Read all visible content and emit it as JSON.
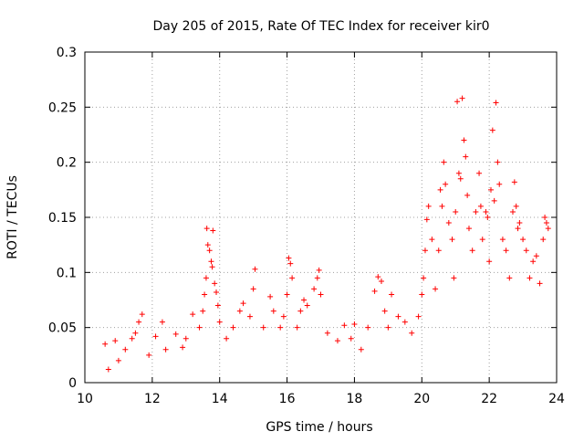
{
  "chart_data": {
    "type": "scatter",
    "title": "Day 205 of 2015, Rate Of TEC Index for receiver kir0",
    "xlabel": "GPS time / hours",
    "ylabel": "ROTI / TECUs",
    "xlim": [
      10,
      24
    ],
    "ylim": [
      0,
      0.3
    ],
    "xticks": [
      "10",
      "12",
      "14",
      "16",
      "18",
      "20",
      "22",
      "24"
    ],
    "yticks": [
      "0",
      "0.05",
      "0.1",
      "0.15",
      "0.2",
      "0.25",
      "0.3"
    ],
    "grid": true,
    "marker": "+",
    "color": "#ff0000",
    "series": [
      {
        "points": [
          [
            10.6,
            0.035
          ],
          [
            10.7,
            0.012
          ],
          [
            10.9,
            0.038
          ],
          [
            11.0,
            0.02
          ],
          [
            11.2,
            0.03
          ],
          [
            11.4,
            0.04
          ],
          [
            11.5,
            0.045
          ],
          [
            11.6,
            0.055
          ],
          [
            11.7,
            0.062
          ],
          [
            11.9,
            0.025
          ],
          [
            12.1,
            0.042
          ],
          [
            12.3,
            0.055
          ],
          [
            12.4,
            0.03
          ],
          [
            12.7,
            0.044
          ],
          [
            12.9,
            0.032
          ],
          [
            13.0,
            0.04
          ],
          [
            13.2,
            0.062
          ],
          [
            13.4,
            0.05
          ],
          [
            13.5,
            0.065
          ],
          [
            13.55,
            0.08
          ],
          [
            13.6,
            0.095
          ],
          [
            13.62,
            0.14
          ],
          [
            13.65,
            0.125
          ],
          [
            13.7,
            0.12
          ],
          [
            13.75,
            0.11
          ],
          [
            13.78,
            0.105
          ],
          [
            13.8,
            0.138
          ],
          [
            13.85,
            0.09
          ],
          [
            13.9,
            0.082
          ],
          [
            13.95,
            0.07
          ],
          [
            14.0,
            0.055
          ],
          [
            14.2,
            0.04
          ],
          [
            14.4,
            0.05
          ],
          [
            14.6,
            0.065
          ],
          [
            14.7,
            0.072
          ],
          [
            14.9,
            0.06
          ],
          [
            15.0,
            0.085
          ],
          [
            15.05,
            0.103
          ],
          [
            15.3,
            0.05
          ],
          [
            15.5,
            0.078
          ],
          [
            15.6,
            0.065
          ],
          [
            15.8,
            0.05
          ],
          [
            15.9,
            0.06
          ],
          [
            16.0,
            0.08
          ],
          [
            16.05,
            0.113
          ],
          [
            16.1,
            0.108
          ],
          [
            16.15,
            0.095
          ],
          [
            16.3,
            0.05
          ],
          [
            16.4,
            0.065
          ],
          [
            16.5,
            0.075
          ],
          [
            16.6,
            0.07
          ],
          [
            16.8,
            0.085
          ],
          [
            16.9,
            0.095
          ],
          [
            16.95,
            0.102
          ],
          [
            17.0,
            0.08
          ],
          [
            17.2,
            0.045
          ],
          [
            17.5,
            0.038
          ],
          [
            17.7,
            0.052
          ],
          [
            17.9,
            0.04
          ],
          [
            18.0,
            0.053
          ],
          [
            18.2,
            0.03
          ],
          [
            18.4,
            0.05
          ],
          [
            18.6,
            0.083
          ],
          [
            18.7,
            0.096
          ],
          [
            18.8,
            0.092
          ],
          [
            18.9,
            0.065
          ],
          [
            19.0,
            0.05
          ],
          [
            19.1,
            0.08
          ],
          [
            19.3,
            0.06
          ],
          [
            19.5,
            0.055
          ],
          [
            19.7,
            0.045
          ],
          [
            19.9,
            0.06
          ],
          [
            20.0,
            0.08
          ],
          [
            20.05,
            0.095
          ],
          [
            20.1,
            0.12
          ],
          [
            20.15,
            0.148
          ],
          [
            20.2,
            0.16
          ],
          [
            20.3,
            0.13
          ],
          [
            20.4,
            0.085
          ],
          [
            20.5,
            0.12
          ],
          [
            20.55,
            0.175
          ],
          [
            20.6,
            0.16
          ],
          [
            20.65,
            0.2
          ],
          [
            20.7,
            0.18
          ],
          [
            20.8,
            0.145
          ],
          [
            20.9,
            0.13
          ],
          [
            20.95,
            0.095
          ],
          [
            21.0,
            0.155
          ],
          [
            21.05,
            0.255
          ],
          [
            21.1,
            0.19
          ],
          [
            21.15,
            0.185
          ],
          [
            21.2,
            0.258
          ],
          [
            21.25,
            0.22
          ],
          [
            21.3,
            0.205
          ],
          [
            21.35,
            0.17
          ],
          [
            21.4,
            0.14
          ],
          [
            21.5,
            0.12
          ],
          [
            21.6,
            0.155
          ],
          [
            21.7,
            0.19
          ],
          [
            21.75,
            0.16
          ],
          [
            21.8,
            0.13
          ],
          [
            21.9,
            0.155
          ],
          [
            21.95,
            0.15
          ],
          [
            22.0,
            0.11
          ],
          [
            22.05,
            0.175
          ],
          [
            22.1,
            0.229
          ],
          [
            22.15,
            0.165
          ],
          [
            22.2,
            0.254
          ],
          [
            22.25,
            0.2
          ],
          [
            22.3,
            0.18
          ],
          [
            22.4,
            0.13
          ],
          [
            22.5,
            0.12
          ],
          [
            22.6,
            0.095
          ],
          [
            22.7,
            0.155
          ],
          [
            22.75,
            0.182
          ],
          [
            22.8,
            0.16
          ],
          [
            22.85,
            0.14
          ],
          [
            22.9,
            0.145
          ],
          [
            23.0,
            0.13
          ],
          [
            23.1,
            0.12
          ],
          [
            23.2,
            0.095
          ],
          [
            23.3,
            0.11
          ],
          [
            23.4,
            0.115
          ],
          [
            23.5,
            0.09
          ],
          [
            23.6,
            0.13
          ],
          [
            23.65,
            0.15
          ],
          [
            23.7,
            0.145
          ],
          [
            23.75,
            0.14
          ]
        ]
      }
    ]
  }
}
